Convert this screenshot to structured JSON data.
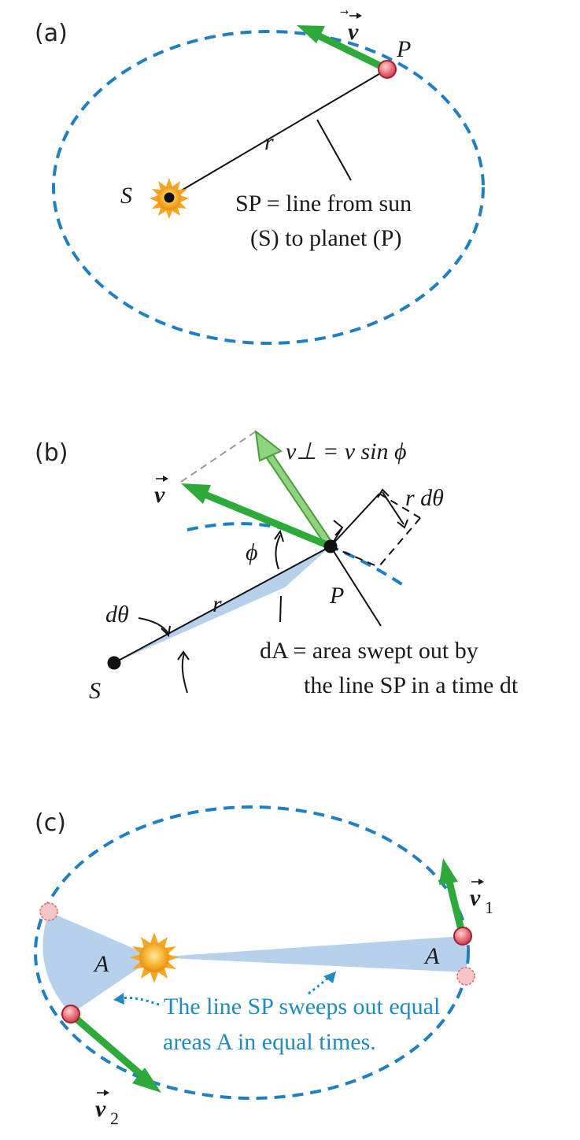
{
  "panels": {
    "a": {
      "label": "(a)",
      "velocity_label": "v",
      "planet_label": "P",
      "sun_label": "S",
      "radius_label": "r",
      "caption_line1": "SP = line from sun",
      "caption_line2": "(S) to planet (P)"
    },
    "b": {
      "label": "(b)",
      "vperp_label": "v⊥ = v sin ϕ",
      "velocity_label": "v",
      "rdtheta_label": "r dθ",
      "phi_label": "ϕ",
      "dtheta_label": "dθ",
      "radius_label": "r",
      "planet_label": "P",
      "sun_label": "S",
      "caption_line1": "dA = area swept out by",
      "caption_line2": "the line SP in a time dt"
    },
    "c": {
      "label": "(c)",
      "v1_label": "v",
      "v1_sub": "1",
      "v2_label": "v",
      "v2_sub": "2",
      "area_left_label": "A",
      "area_right_label": "A",
      "caption_line1": "The line SP sweeps out equal",
      "caption_line2": "areas A in equal times."
    }
  },
  "colors": {
    "orbit": "#1f7fc1",
    "velocity_arrow": "#2eaa3a",
    "vperp_arrow": "#8fd47f",
    "swept_area": "#b7d0ec",
    "planet": "#e8707a",
    "sun": "#f3a21c",
    "caption_blue": "#1f8bbf"
  }
}
